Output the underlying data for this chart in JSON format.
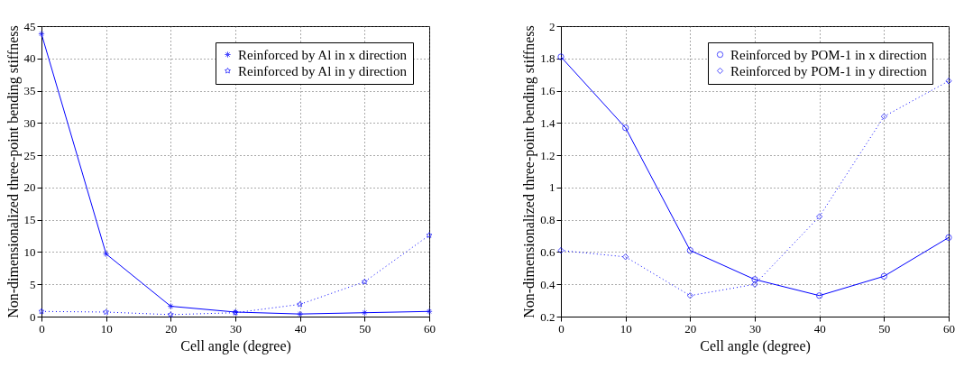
{
  "chart_data": [
    {
      "type": "line",
      "xlabel": "Cell angle (degree)",
      "ylabel": "Non-dimensionalized three-point bending stiffness",
      "x": [
        0,
        10,
        20,
        30,
        40,
        50,
        60
      ],
      "series": [
        {
          "name": "Reinforced by Al in x direction",
          "color": "#0000ff",
          "marker": "cross",
          "line_style": "solid",
          "values": [
            43.8,
            9.7,
            1.6,
            0.7,
            0.4,
            0.6,
            0.8
          ]
        },
        {
          "name": "Reinforced by Al in y direction",
          "color": "#0000ff",
          "marker": "star",
          "line_style": "dotted",
          "values": [
            0.8,
            0.7,
            0.3,
            0.6,
            1.9,
            5.4,
            12.6
          ]
        }
      ],
      "xlim": [
        0,
        60
      ],
      "xticks": [
        0,
        10,
        20,
        30,
        40,
        50,
        60
      ],
      "ylim": [
        0,
        45
      ],
      "yticks": [
        0,
        5,
        10,
        15,
        20,
        25,
        30,
        35,
        40,
        45
      ],
      "grid": true,
      "legend": "top right"
    },
    {
      "type": "line",
      "xlabel": "Cell angle (degree)",
      "ylabel": "Non-dimensionalized three-point bending stiffness",
      "x": [
        0,
        10,
        20,
        30,
        40,
        50,
        60
      ],
      "series": [
        {
          "name": "Reinforced by POM-1 in x direction",
          "color": "#0000ff",
          "marker": "circle",
          "line_style": "solid",
          "values": [
            1.81,
            1.37,
            0.61,
            0.43,
            0.33,
            0.45,
            0.69
          ]
        },
        {
          "name": "Reinforced by POM-1 in y direction",
          "color": "#0000ff",
          "marker": "diamond",
          "line_style": "dotted",
          "values": [
            0.61,
            0.57,
            0.33,
            0.4,
            0.82,
            1.44,
            1.66
          ]
        }
      ],
      "xlim": [
        0,
        60
      ],
      "xticks": [
        0,
        10,
        20,
        30,
        40,
        50,
        60
      ],
      "ylim": [
        0.2,
        2
      ],
      "yticks": [
        0.2,
        0.4,
        0.6,
        0.8,
        1,
        1.2,
        1.4,
        1.6,
        1.8,
        2
      ],
      "grid": true,
      "legend": "top right"
    }
  ]
}
